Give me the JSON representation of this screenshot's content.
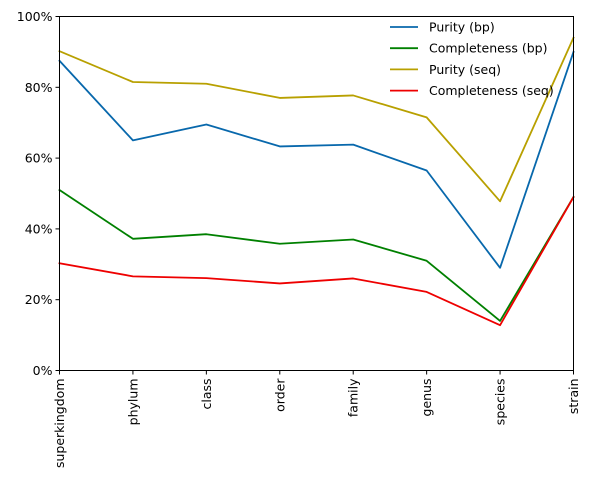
{
  "chart_data": {
    "type": "line",
    "title": "",
    "xlabel": "",
    "ylabel": "",
    "categories": [
      "superkingdom",
      "phylum",
      "class",
      "order",
      "family",
      "genus",
      "species",
      "strain"
    ],
    "ylim": [
      0,
      100
    ],
    "yticks": [
      "0%",
      "20%",
      "40%",
      "60%",
      "80%",
      "100%"
    ],
    "grid": false,
    "legend_position": "top-right",
    "series": [
      {
        "name": "Purity (bp)",
        "color": "#0868ac",
        "values": [
          87.5,
          65.0,
          69.5,
          63.3,
          63.8,
          56.5,
          29.0,
          90.0
        ]
      },
      {
        "name": "Completeness (bp)",
        "color": "#008000",
        "values": [
          51.0,
          37.2,
          38.5,
          35.8,
          37.0,
          31.0,
          14.0,
          49.0
        ]
      },
      {
        "name": "Purity (seq)",
        "color": "#b8a000",
        "values": [
          90.2,
          81.5,
          81.0,
          77.0,
          77.7,
          71.5,
          47.8,
          94.0
        ]
      },
      {
        "name": "Completeness (seq)",
        "color": "#ee0000",
        "values": [
          30.3,
          26.6,
          26.1,
          24.6,
          26.0,
          22.2,
          12.8,
          49.0
        ]
      }
    ]
  }
}
